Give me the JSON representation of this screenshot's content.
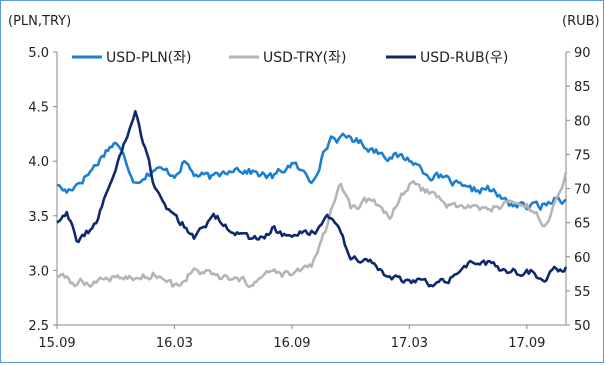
{
  "chart_data": {
    "type": "line",
    "ylabel_left": "(PLN,TRY)",
    "ylabel_right": "(RUB)",
    "x_ticks": [
      "15.09",
      "16.03",
      "16.09",
      "17.03",
      "17.09"
    ],
    "ylim_left": [
      2.5,
      5.0
    ],
    "ylim_right": [
      50,
      90
    ],
    "yticks_left": [
      "2.5",
      "3.0",
      "3.5",
      "4.0",
      "4.5",
      "5.0"
    ],
    "yticks_right": [
      "50",
      "55",
      "60",
      "65",
      "70",
      "75",
      "80",
      "85",
      "90"
    ],
    "grid": false,
    "legend_position": "top",
    "series": [
      {
        "name": "USD-PLN(좌)",
        "axis": "left",
        "color": "#1e7fd0",
        "x": [
          0,
          0.5,
          1.5,
          2,
          2.5,
          3,
          4,
          5,
          6,
          6.5,
          7,
          8,
          9,
          10,
          11,
          12,
          13,
          14,
          14.5,
          15,
          16,
          17,
          18,
          19,
          20,
          21,
          22,
          23,
          24,
          25,
          25.5,
          26
        ],
        "y": [
          3.78,
          3.72,
          3.87,
          3.97,
          4.1,
          4.18,
          3.82,
          3.93,
          3.88,
          4.0,
          3.88,
          3.84,
          3.95,
          3.9,
          3.85,
          3.98,
          3.82,
          4.22,
          4.2,
          4.22,
          4.12,
          4.05,
          4.02,
          3.88,
          3.82,
          3.72,
          3.75,
          3.62,
          3.58,
          3.6,
          3.68,
          3.65
        ]
      },
      {
        "name": "USD-TRY(좌)",
        "axis": "left",
        "color": "#b5b5b5",
        "x": [
          0,
          1,
          2,
          3,
          4,
          5,
          6,
          7,
          8,
          9,
          10,
          11,
          12,
          13,
          13.5,
          14,
          14.5,
          15,
          16,
          17,
          18,
          19,
          20,
          21,
          22,
          23,
          24,
          25,
          25.5,
          26
        ],
        "y": [
          2.95,
          2.88,
          2.9,
          2.95,
          2.92,
          2.98,
          2.85,
          3.0,
          2.95,
          2.9,
          2.88,
          2.98,
          2.95,
          3.05,
          3.25,
          3.52,
          3.78,
          3.55,
          3.65,
          3.5,
          3.78,
          3.72,
          3.6,
          3.58,
          3.55,
          3.62,
          3.58,
          3.42,
          3.62,
          3.9
        ]
      },
      {
        "name": "USD-RUB(우)",
        "axis": "right",
        "color": "#0f2a6b",
        "x": [
          0,
          0.5,
          1,
          2,
          3,
          4,
          5,
          6,
          7,
          8,
          9,
          10,
          11,
          12,
          13,
          14,
          15,
          16,
          17,
          18,
          19,
          20,
          21,
          22,
          23,
          24,
          25,
          25.5,
          26
        ],
        "y": [
          65,
          67,
          62,
          65,
          73,
          81,
          70,
          66,
          63,
          66,
          64,
          62,
          64,
          63,
          63.5,
          66,
          60,
          59,
          57,
          56.5,
          56,
          57,
          59,
          59,
          57.5,
          58,
          57,
          58,
          58.5
        ]
      }
    ]
  }
}
